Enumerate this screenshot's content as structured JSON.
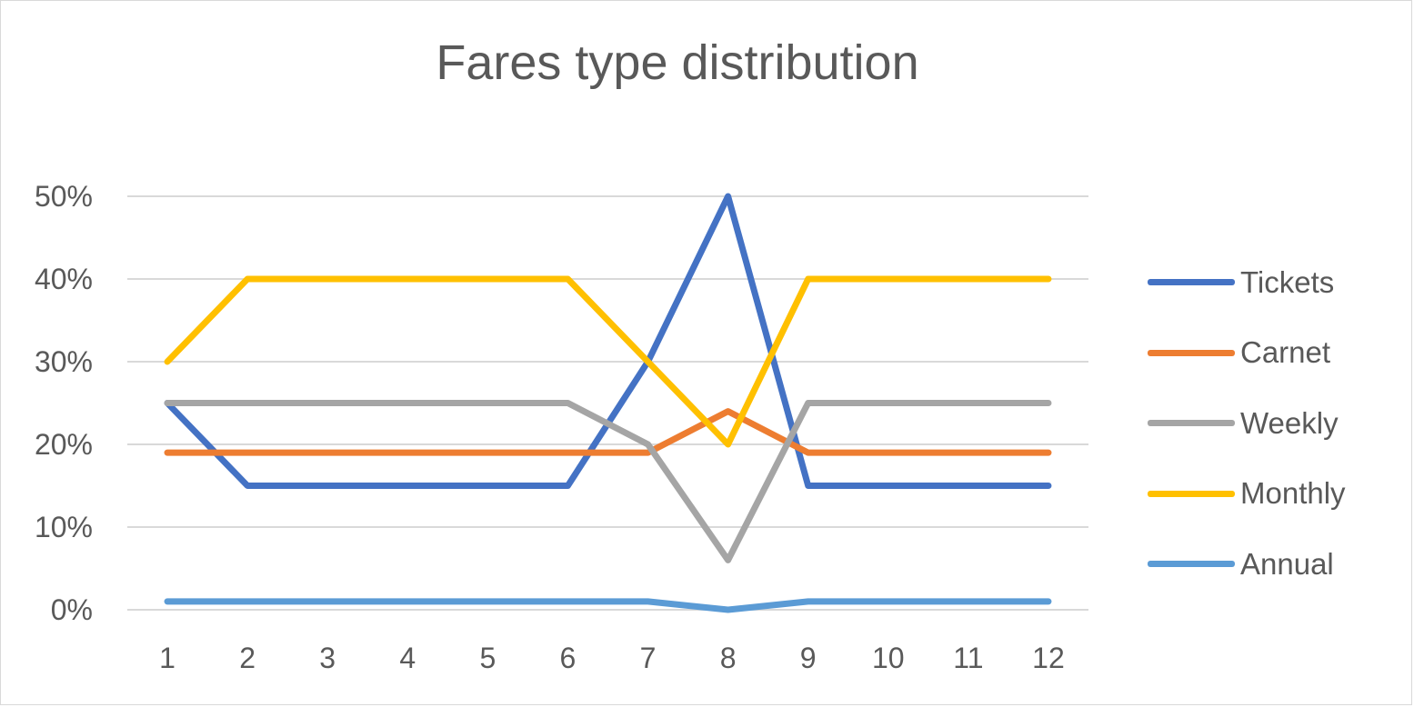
{
  "chart_data": {
    "type": "line",
    "title": "Fares type distribution",
    "xlabel": "",
    "ylabel": "",
    "categories": [
      "1",
      "2",
      "3",
      "4",
      "5",
      "6",
      "7",
      "8",
      "9",
      "10",
      "11",
      "12"
    ],
    "y_ticks": [
      "0%",
      "10%",
      "20%",
      "30%",
      "40%",
      "50%"
    ],
    "ylim": [
      0,
      50
    ],
    "grid": true,
    "legend_position": "right",
    "series": [
      {
        "name": "Tickets",
        "color": "#4472C4",
        "values": [
          25,
          15,
          15,
          15,
          15,
          15,
          30,
          50,
          15,
          15,
          15,
          15
        ]
      },
      {
        "name": "Carnet",
        "color": "#ED7D31",
        "values": [
          19,
          19,
          19,
          19,
          19,
          19,
          19,
          24,
          19,
          19,
          19,
          19
        ]
      },
      {
        "name": "Weekly",
        "color": "#A5A5A5",
        "values": [
          25,
          25,
          25,
          25,
          25,
          25,
          20,
          6,
          25,
          25,
          25,
          25
        ]
      },
      {
        "name": "Monthly",
        "color": "#FFC000",
        "values": [
          30,
          40,
          40,
          40,
          40,
          40,
          30,
          20,
          40,
          40,
          40,
          40
        ]
      },
      {
        "name": "Annual",
        "color": "#5B9BD5",
        "values": [
          1,
          1,
          1,
          1,
          1,
          1,
          1,
          0,
          1,
          1,
          1,
          1
        ]
      }
    ]
  }
}
